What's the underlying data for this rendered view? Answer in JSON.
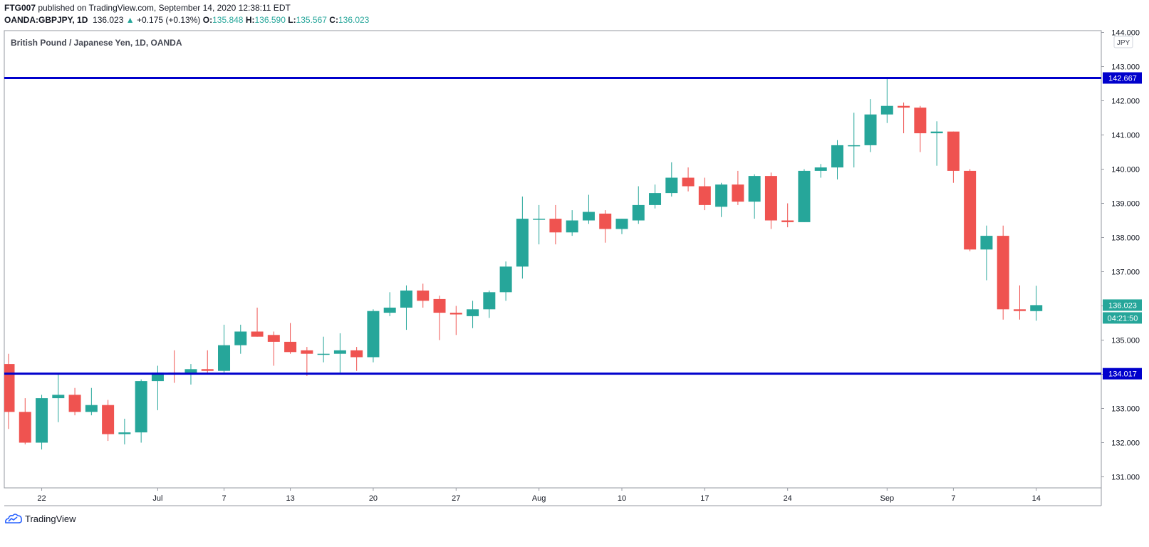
{
  "header": {
    "author": "FTG007",
    "published_text": "published on TradingView.com, September 14, 2020 12:38:11 EDT",
    "symbol": "OANDA:GBPJPY, 1D",
    "last": "136.023",
    "change": "+0.175 (+0.13%)",
    "change_arrow": "▲",
    "o_label": "O:",
    "o_value": "135.848",
    "h_label": "H:",
    "h_value": "136.590",
    "l_label": "L:",
    "l_value": "135.567",
    "c_label": "C:",
    "c_value": "136.023"
  },
  "footer": {
    "brand": "TradingView",
    "logo_icon": "tradingview-logo-icon"
  },
  "colors": {
    "up": "#26a69a",
    "down": "#ef5350",
    "level_line": "#0000cc",
    "badge_up": "#26a69a",
    "badge_level": "#0000cc"
  },
  "chart_data": {
    "type": "candlestick",
    "title": "British Pound / Japanese Yen, 1D, OANDA",
    "currency_label": "JPY",
    "ylim": [
      130.65,
      144.1
    ],
    "y_ticks": [
      "131.000",
      "132.000",
      "133.000",
      "134.000",
      "135.000",
      "136.000",
      "137.000",
      "138.000",
      "139.000",
      "140.000",
      "141.000",
      "142.000",
      "143.000",
      "144.000"
    ],
    "x_tick_labels": [
      {
        "label": "22",
        "date": "2020-06-22"
      },
      {
        "label": "Jul",
        "date": "2020-07-01"
      },
      {
        "label": "7",
        "date": "2020-07-07"
      },
      {
        "label": "13",
        "date": "2020-07-13"
      },
      {
        "label": "20",
        "date": "2020-07-20"
      },
      {
        "label": "27",
        "date": "2020-07-27"
      },
      {
        "label": "Aug",
        "date": "2020-08-03"
      },
      {
        "label": "10",
        "date": "2020-08-10"
      },
      {
        "label": "17",
        "date": "2020-08-17"
      },
      {
        "label": "24",
        "date": "2020-08-24"
      },
      {
        "label": "Sep",
        "date": "2020-09-01"
      },
      {
        "label": "7",
        "date": "2020-09-07"
      },
      {
        "label": "14",
        "date": "2020-09-14"
      }
    ],
    "candles": [
      {
        "date": "2020-06-18",
        "o": 134.3,
        "h": 134.6,
        "l": 132.4,
        "c": 132.9
      },
      {
        "date": "2020-06-19",
        "o": 132.9,
        "h": 133.3,
        "l": 131.95,
        "c": 132.0
      },
      {
        "date": "2020-06-22",
        "o": 132.0,
        "h": 133.4,
        "l": 131.8,
        "c": 133.3
      },
      {
        "date": "2020-06-23",
        "o": 133.3,
        "h": 134.0,
        "l": 132.6,
        "c": 133.4
      },
      {
        "date": "2020-06-24",
        "o": 133.4,
        "h": 133.6,
        "l": 132.8,
        "c": 132.9
      },
      {
        "date": "2020-06-25",
        "o": 132.9,
        "h": 133.6,
        "l": 132.8,
        "c": 133.1
      },
      {
        "date": "2020-06-26",
        "o": 133.1,
        "h": 133.25,
        "l": 132.05,
        "c": 132.25
      },
      {
        "date": "2020-06-29",
        "o": 132.25,
        "h": 132.7,
        "l": 131.95,
        "c": 132.3
      },
      {
        "date": "2020-06-30",
        "o": 132.3,
        "h": 133.85,
        "l": 132.0,
        "c": 133.8
      },
      {
        "date": "2020-07-01",
        "o": 133.8,
        "h": 134.25,
        "l": 132.95,
        "c": 134.05
      },
      {
        "date": "2020-07-02",
        "o": 134.05,
        "h": 134.7,
        "l": 133.75,
        "c": 134.0
      },
      {
        "date": "2020-07-03",
        "o": 134.0,
        "h": 134.3,
        "l": 133.7,
        "c": 134.15
      },
      {
        "date": "2020-07-06",
        "o": 134.15,
        "h": 134.7,
        "l": 134.0,
        "c": 134.1
      },
      {
        "date": "2020-07-07",
        "o": 134.1,
        "h": 135.45,
        "l": 134.05,
        "c": 134.85
      },
      {
        "date": "2020-07-08",
        "o": 134.85,
        "h": 135.45,
        "l": 134.6,
        "c": 135.25
      },
      {
        "date": "2020-07-09",
        "o": 135.25,
        "h": 135.95,
        "l": 135.1,
        "c": 135.1
      },
      {
        "date": "2020-07-10",
        "o": 135.15,
        "h": 135.25,
        "l": 134.25,
        "c": 134.95
      },
      {
        "date": "2020-07-13",
        "o": 134.95,
        "h": 135.5,
        "l": 134.6,
        "c": 134.65
      },
      {
        "date": "2020-07-14",
        "o": 134.7,
        "h": 134.8,
        "l": 133.95,
        "c": 134.6
      },
      {
        "date": "2020-07-15",
        "o": 134.6,
        "h": 135.1,
        "l": 134.35,
        "c": 134.6
      },
      {
        "date": "2020-07-16",
        "o": 134.6,
        "h": 135.2,
        "l": 134.05,
        "c": 134.7
      },
      {
        "date": "2020-07-17",
        "o": 134.7,
        "h": 134.8,
        "l": 134.1,
        "c": 134.5
      },
      {
        "date": "2020-07-20",
        "o": 134.5,
        "h": 135.9,
        "l": 134.35,
        "c": 135.85
      },
      {
        "date": "2020-07-21",
        "o": 135.8,
        "h": 136.4,
        "l": 135.7,
        "c": 135.95
      },
      {
        "date": "2020-07-22",
        "o": 135.95,
        "h": 136.6,
        "l": 135.3,
        "c": 136.45
      },
      {
        "date": "2020-07-23",
        "o": 136.45,
        "h": 136.65,
        "l": 135.95,
        "c": 136.15
      },
      {
        "date": "2020-07-24",
        "o": 136.2,
        "h": 136.3,
        "l": 135.0,
        "c": 135.8
      },
      {
        "date": "2020-07-27",
        "o": 135.8,
        "h": 136.0,
        "l": 135.15,
        "c": 135.75
      },
      {
        "date": "2020-07-28",
        "o": 135.7,
        "h": 136.15,
        "l": 135.35,
        "c": 135.9
      },
      {
        "date": "2020-07-29",
        "o": 135.9,
        "h": 136.45,
        "l": 135.65,
        "c": 136.4
      },
      {
        "date": "2020-07-30",
        "o": 136.4,
        "h": 137.3,
        "l": 136.15,
        "c": 137.15
      },
      {
        "date": "2020-07-31",
        "o": 137.15,
        "h": 139.2,
        "l": 136.8,
        "c": 138.55
      },
      {
        "date": "2020-08-03",
        "o": 138.55,
        "h": 138.95,
        "l": 137.8,
        "c": 138.55
      },
      {
        "date": "2020-08-04",
        "o": 138.55,
        "h": 138.95,
        "l": 137.8,
        "c": 138.15
      },
      {
        "date": "2020-08-05",
        "o": 138.15,
        "h": 138.8,
        "l": 138.05,
        "c": 138.5
      },
      {
        "date": "2020-08-06",
        "o": 138.5,
        "h": 139.25,
        "l": 138.4,
        "c": 138.75
      },
      {
        "date": "2020-08-07",
        "o": 138.7,
        "h": 138.8,
        "l": 137.85,
        "c": 138.25
      },
      {
        "date": "2020-08-10",
        "o": 138.25,
        "h": 138.55,
        "l": 138.1,
        "c": 138.55
      },
      {
        "date": "2020-08-11",
        "o": 138.5,
        "h": 139.5,
        "l": 138.4,
        "c": 138.95
      },
      {
        "date": "2020-08-12",
        "o": 138.95,
        "h": 139.55,
        "l": 138.85,
        "c": 139.3
      },
      {
        "date": "2020-08-13",
        "o": 139.3,
        "h": 140.2,
        "l": 139.2,
        "c": 139.75
      },
      {
        "date": "2020-08-14",
        "o": 139.75,
        "h": 140.05,
        "l": 139.35,
        "c": 139.5
      },
      {
        "date": "2020-08-17",
        "o": 139.5,
        "h": 139.75,
        "l": 138.8,
        "c": 138.95
      },
      {
        "date": "2020-08-18",
        "o": 138.9,
        "h": 139.6,
        "l": 138.6,
        "c": 139.55
      },
      {
        "date": "2020-08-19",
        "o": 139.55,
        "h": 139.95,
        "l": 138.95,
        "c": 139.05
      },
      {
        "date": "2020-08-20",
        "o": 139.05,
        "h": 139.85,
        "l": 138.55,
        "c": 139.8
      },
      {
        "date": "2020-08-21",
        "o": 139.8,
        "h": 139.9,
        "l": 138.25,
        "c": 138.5
      },
      {
        "date": "2020-08-24",
        "o": 138.5,
        "h": 139.0,
        "l": 138.3,
        "c": 138.45
      },
      {
        "date": "2020-08-25",
        "o": 138.45,
        "h": 140.0,
        "l": 138.45,
        "c": 139.95
      },
      {
        "date": "2020-08-26",
        "o": 139.95,
        "h": 140.15,
        "l": 139.75,
        "c": 140.05
      },
      {
        "date": "2020-08-27",
        "o": 140.05,
        "h": 140.85,
        "l": 139.7,
        "c": 140.7
      },
      {
        "date": "2020-08-28",
        "o": 140.7,
        "h": 141.65,
        "l": 140.05,
        "c": 140.7
      },
      {
        "date": "2020-08-31",
        "o": 140.7,
        "h": 142.05,
        "l": 140.5,
        "c": 141.6
      },
      {
        "date": "2020-09-01",
        "o": 141.6,
        "h": 142.667,
        "l": 141.35,
        "c": 141.85
      },
      {
        "date": "2020-09-02",
        "o": 141.85,
        "h": 141.95,
        "l": 141.05,
        "c": 141.8
      },
      {
        "date": "2020-09-03",
        "o": 141.8,
        "h": 141.85,
        "l": 140.5,
        "c": 141.05
      },
      {
        "date": "2020-09-04",
        "o": 141.05,
        "h": 141.4,
        "l": 140.1,
        "c": 141.1
      },
      {
        "date": "2020-09-07",
        "o": 141.1,
        "h": 141.1,
        "l": 139.6,
        "c": 139.95
      },
      {
        "date": "2020-09-08",
        "o": 139.95,
        "h": 140.0,
        "l": 137.6,
        "c": 137.65
      },
      {
        "date": "2020-09-09",
        "o": 137.65,
        "h": 138.35,
        "l": 136.75,
        "c": 138.05
      },
      {
        "date": "2020-09-10",
        "o": 138.05,
        "h": 138.35,
        "l": 135.6,
        "c": 135.9
      },
      {
        "date": "2020-09-11",
        "o": 135.9,
        "h": 136.6,
        "l": 135.6,
        "c": 135.85
      },
      {
        "date": "2020-09-14",
        "o": 135.848,
        "h": 136.59,
        "l": 135.567,
        "c": 136.023
      }
    ],
    "horizontal_lines": [
      {
        "price": 142.667,
        "label": "142.667"
      },
      {
        "price": 134.017,
        "label": "134.017"
      }
    ],
    "last_price_label": "136.023",
    "countdown_label": "04:21:50"
  }
}
